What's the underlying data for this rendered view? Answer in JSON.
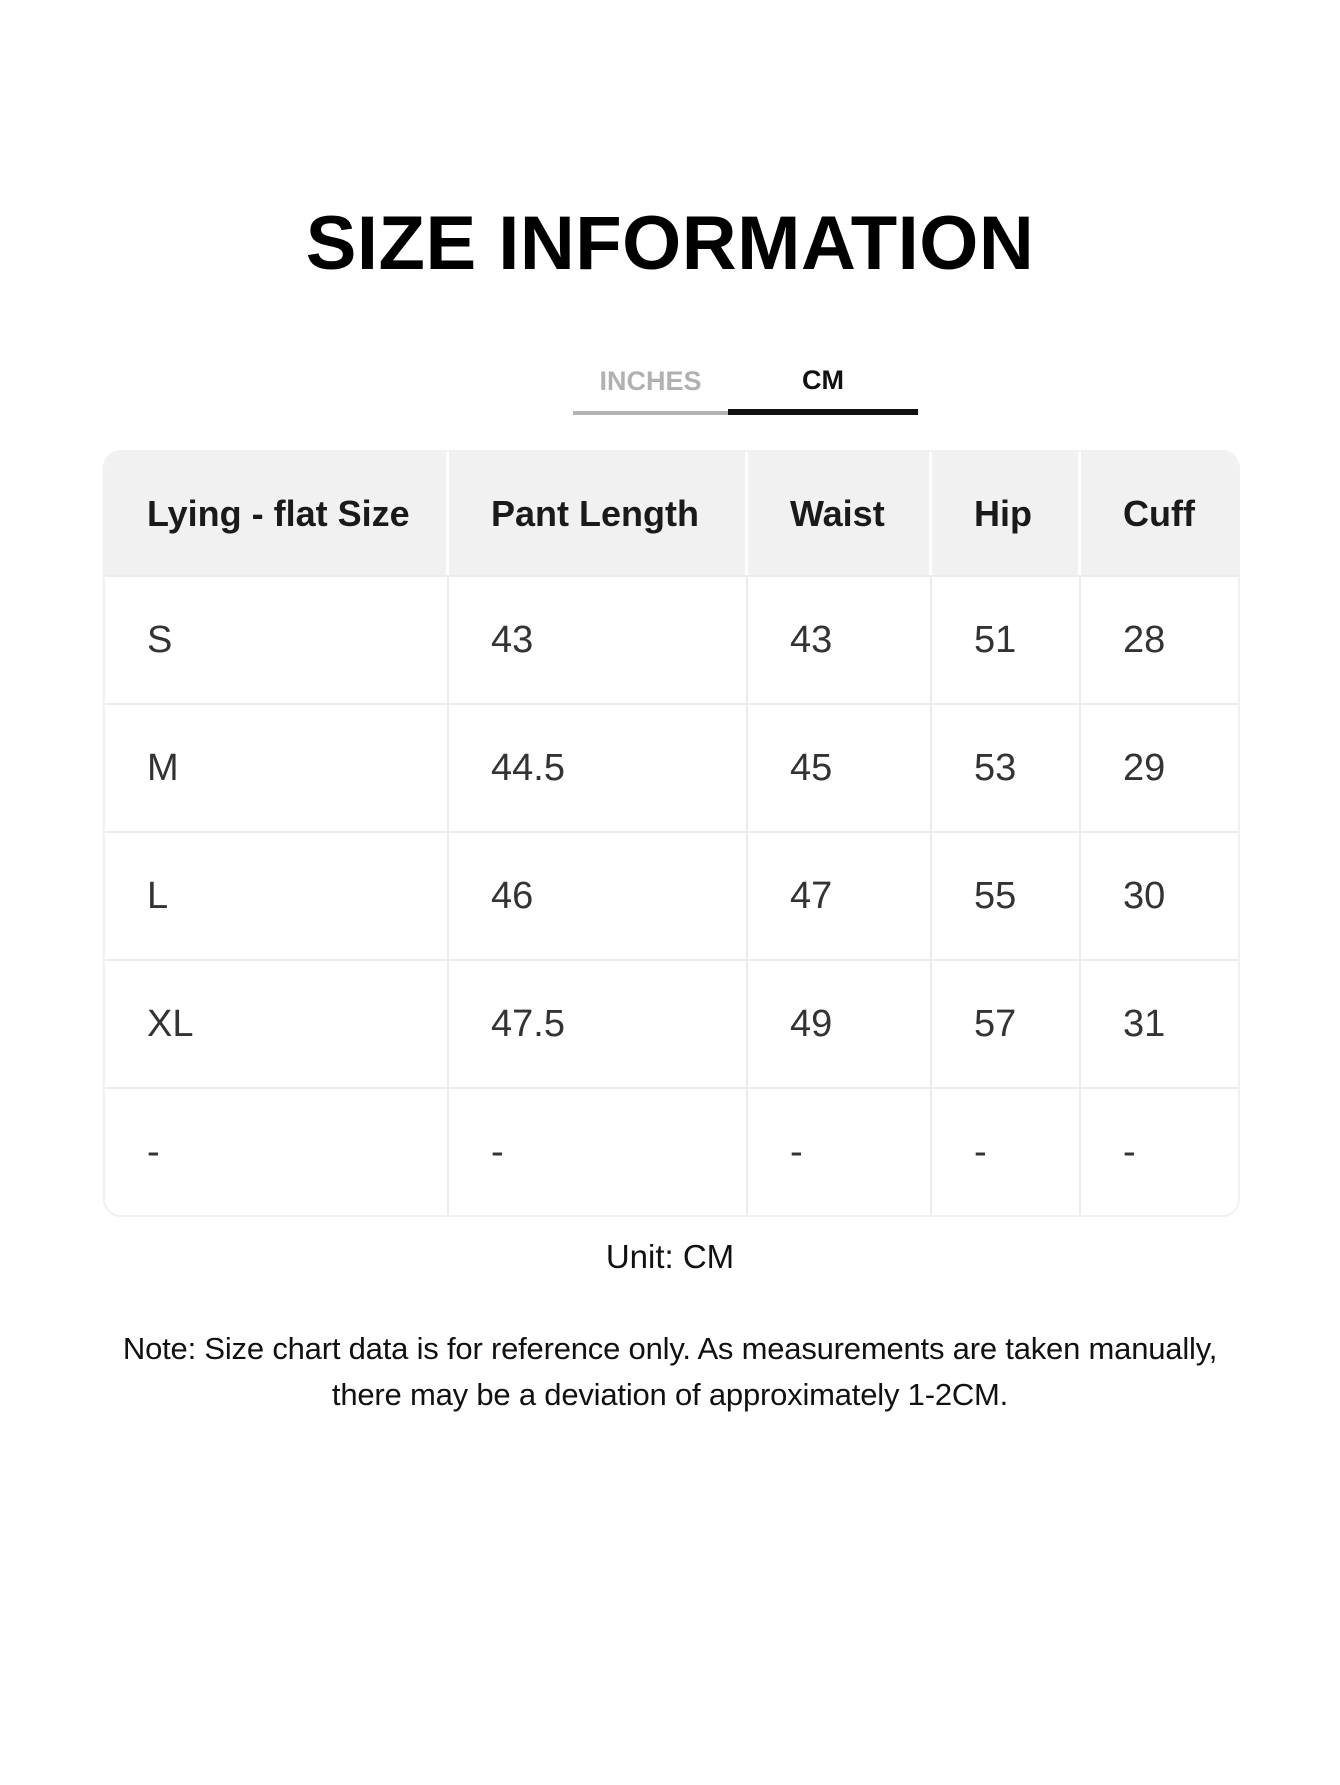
{
  "page": {
    "title": "SIZE INFORMATION"
  },
  "tabs": {
    "inches": {
      "label": "INCHES",
      "active": false
    },
    "cm": {
      "label": "CM",
      "active": true
    }
  },
  "table": {
    "headers": [
      "Lying - flat Size",
      "Pant Length",
      "Waist",
      "Hip",
      "Cuff"
    ],
    "rows": [
      [
        "S",
        "43",
        "43",
        "51",
        "28"
      ],
      [
        "M",
        "44.5",
        "45",
        "53",
        "29"
      ],
      [
        "L",
        "46",
        "47",
        "55",
        "30"
      ],
      [
        "XL",
        "47.5",
        "49",
        "57",
        "31"
      ],
      [
        "-",
        "-",
        "-",
        "-",
        "-"
      ]
    ]
  },
  "unit_caption": "Unit: CM",
  "note": {
    "line1": "Note: Size chart data is for reference only. As measurements are taken manually,",
    "line2": "there may be a deviation of approximately 1-2CM."
  },
  "colors": {
    "tab_inactive": "#b1b1b1",
    "tab_active": "#111111",
    "tab_underline_inactive": "#b3b3b3",
    "tab_underline_active": "#111111",
    "header_bg": "#f1f1f1",
    "divider": "#ececec",
    "header_text": "#1a1a1a",
    "data_text": "#333333"
  }
}
